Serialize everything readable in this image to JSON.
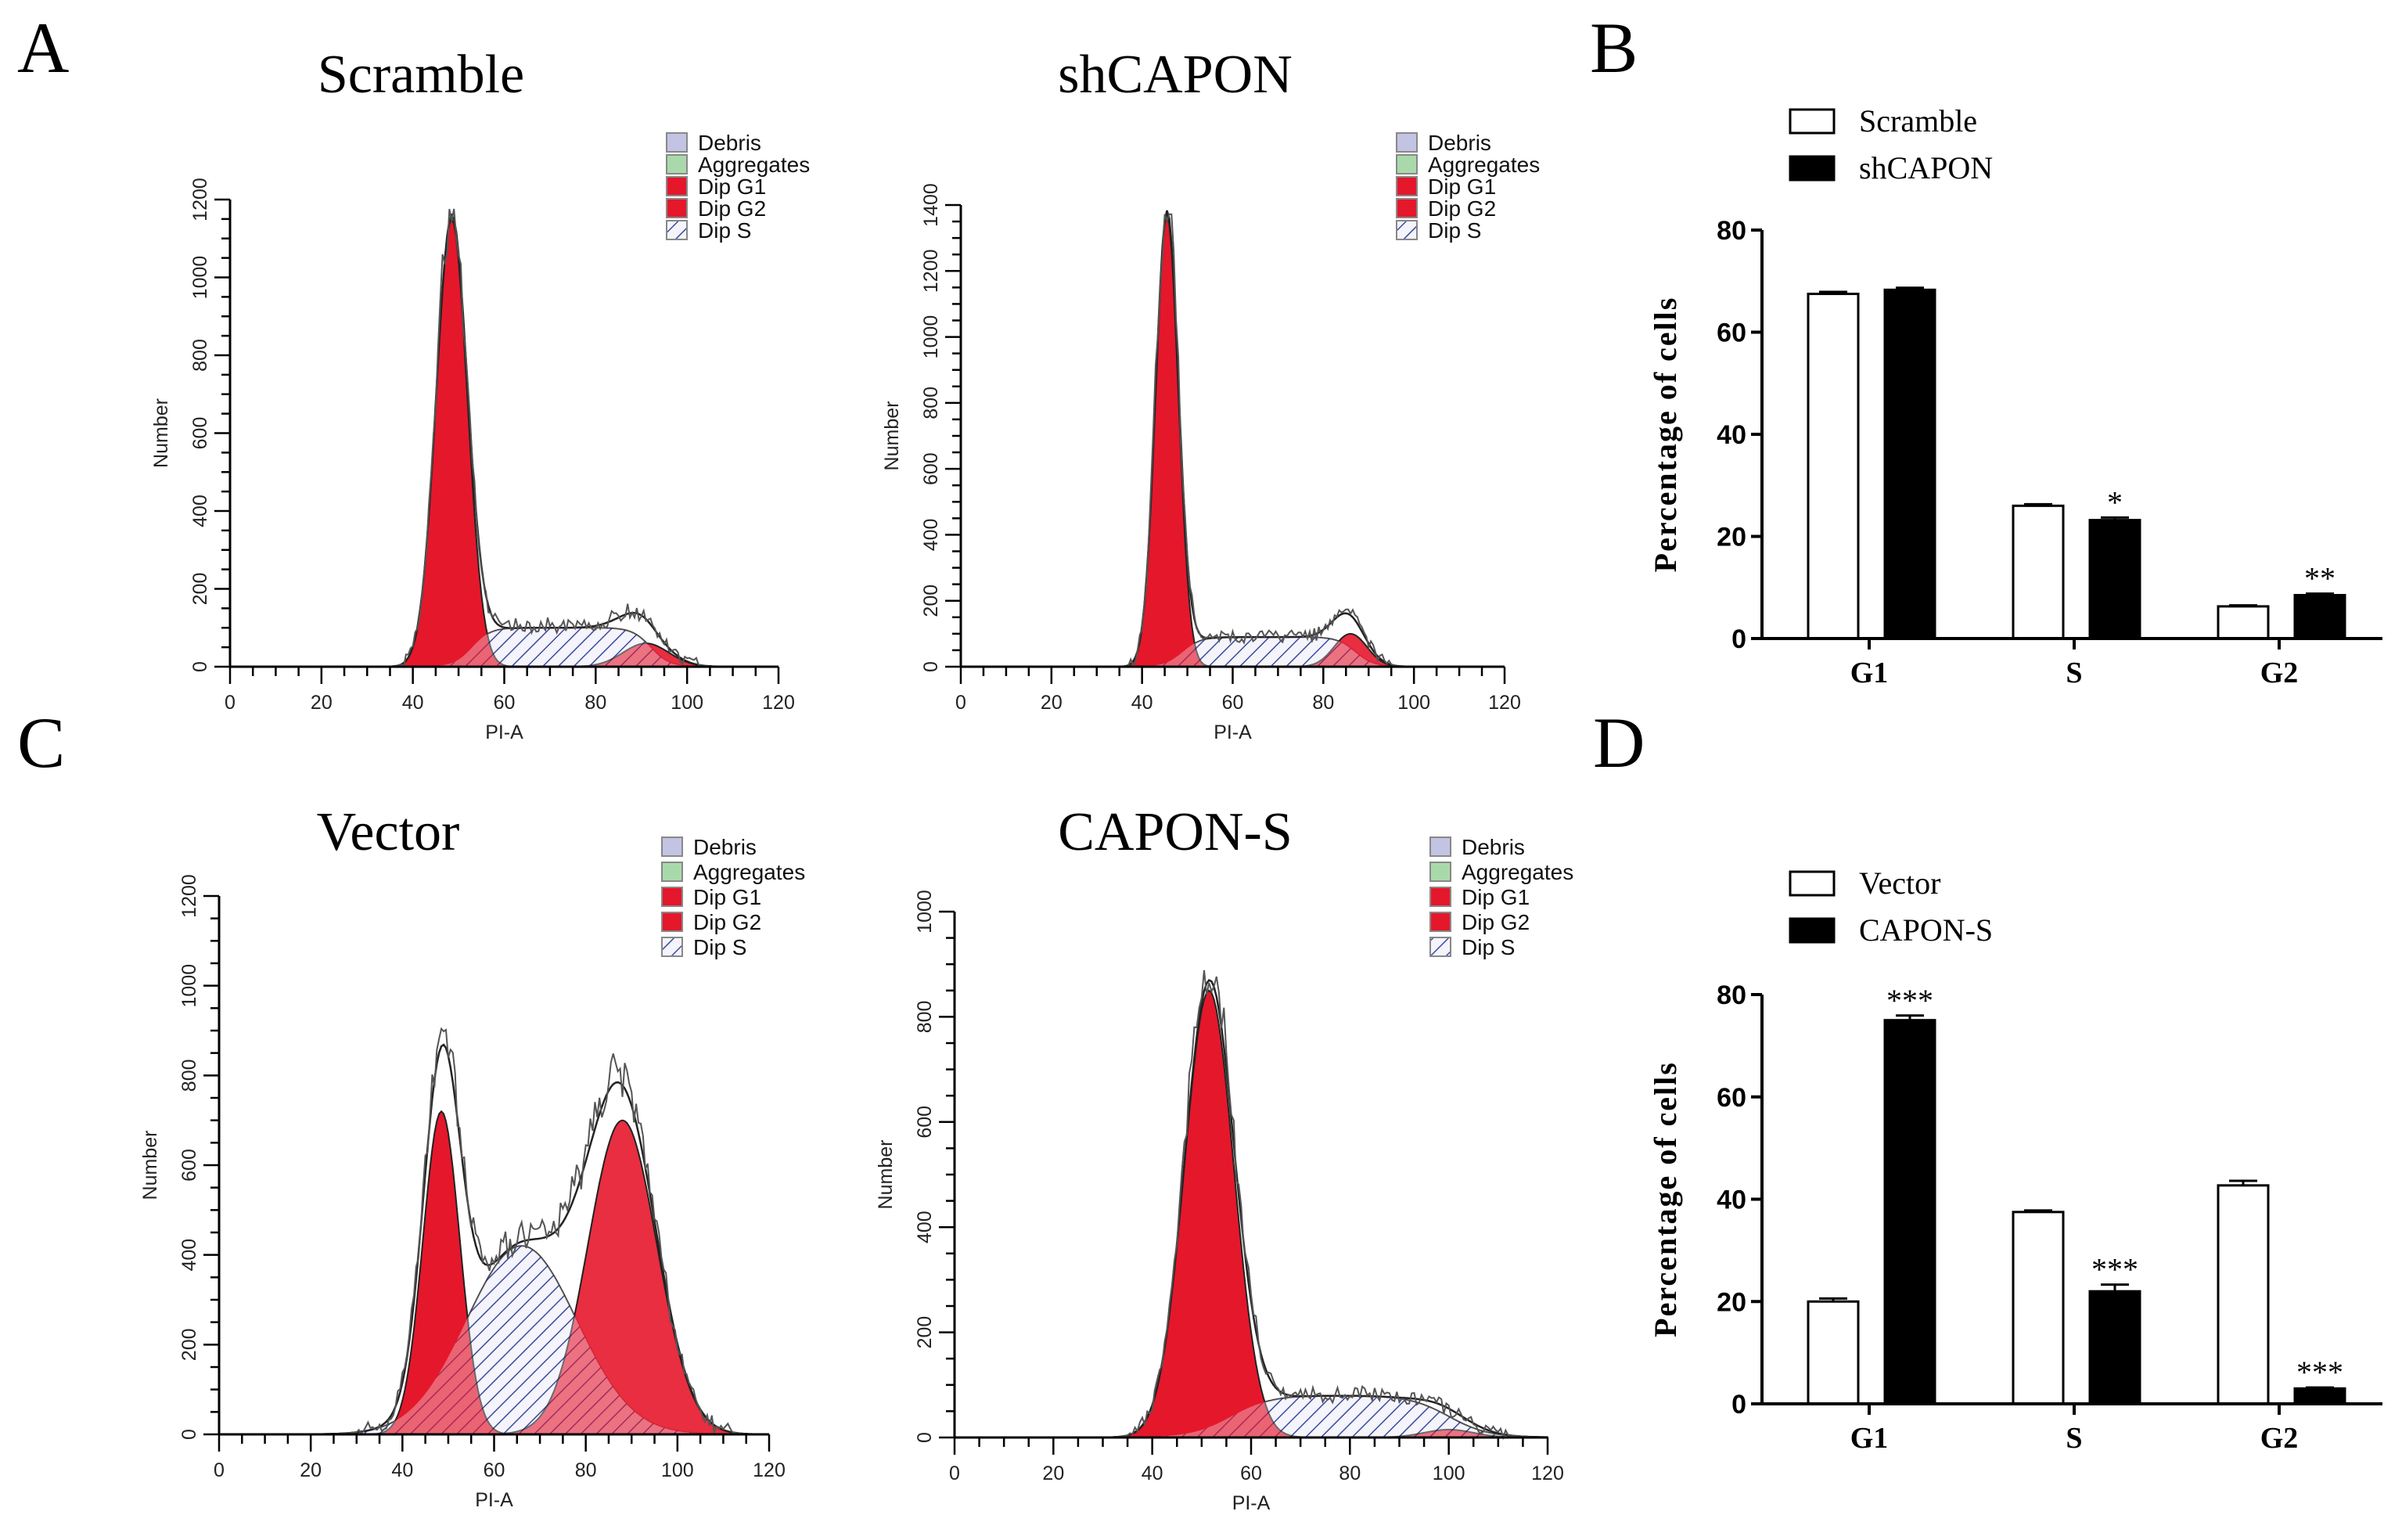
{
  "panel_letters": [
    "A",
    "B",
    "C",
    "D"
  ],
  "colors": {
    "g1": "#e5172b",
    "g2": "#e5172b",
    "debris": "#c3c3e3",
    "aggregates": "#a9d9ab",
    "s_hatch": "#3b4aa0",
    "s_fill": "#f4f4fa"
  },
  "chart_data": [
    {
      "type": "area",
      "title": "Scramble",
      "xlabel": "PI-A",
      "ylabel": "Number",
      "xlim": [
        0,
        120
      ],
      "ylim": [
        0,
        1200
      ],
      "xticks": [
        0,
        20,
        40,
        60,
        80,
        100,
        120
      ],
      "yticks": [
        0,
        200,
        400,
        600,
        800,
        1000,
        1200
      ],
      "legend": [
        "Debris",
        "Aggregates",
        "Dip G1",
        "Dip G2",
        "Dip S"
      ],
      "legend_position": "top-right",
      "components": {
        "g1": {
          "mean": 48.5,
          "sd": 3.4,
          "peak": 1150
        },
        "g2": {
          "mean": 91,
          "sd": 5,
          "peak": 60
        },
        "s": {
          "shape": "plateau",
          "start": 53,
          "end": 92,
          "level": 100,
          "edge": 2
        }
      }
    },
    {
      "type": "area",
      "title": "shCAPON",
      "xlabel": "PI-A",
      "ylabel": "Number",
      "xlim": [
        0,
        120
      ],
      "ylim": [
        0,
        1400
      ],
      "xticks": [
        0,
        20,
        40,
        60,
        80,
        100,
        120
      ],
      "yticks": [
        0,
        200,
        400,
        600,
        800,
        1000,
        1200,
        1400
      ],
      "legend": [
        "Debris",
        "Aggregates",
        "Dip G1",
        "Dip G2",
        "Dip S"
      ],
      "legend_position": "top-right",
      "components": {
        "g1": {
          "mean": 45.5,
          "sd": 2.5,
          "peak": 1370
        },
        "g2": {
          "mean": 86,
          "sd": 3.6,
          "peak": 100
        },
        "s": {
          "shape": "plateau",
          "start": 49,
          "end": 87,
          "level": 90,
          "edge": 2
        }
      }
    },
    {
      "type": "bar",
      "categories": [
        "G1",
        "S",
        "G2"
      ],
      "series": [
        {
          "name": "Scramble",
          "values": [
            67.5,
            26.0,
            6.3
          ],
          "errors": [
            0.4,
            0.3,
            0.2
          ],
          "significance": [
            "",
            "",
            ""
          ]
        },
        {
          "name": "shCAPON",
          "values": [
            68.3,
            23.2,
            8.5
          ],
          "errors": [
            0.4,
            0.5,
            0.3
          ],
          "significance": [
            "",
            "*",
            "**"
          ]
        }
      ],
      "ylabel": "Percentage of cells",
      "ylim": [
        0,
        80
      ],
      "yticks": [
        0,
        20,
        40,
        60,
        80
      ],
      "legend_position": "top-left"
    },
    {
      "type": "area",
      "title": "Vector",
      "xlabel": "PI-A",
      "ylabel": "Number",
      "xlim": [
        0,
        120
      ],
      "ylim": [
        0,
        1200
      ],
      "xticks": [
        0,
        20,
        40,
        60,
        80,
        100,
        120
      ],
      "yticks": [
        0,
        200,
        400,
        600,
        800,
        1000,
        1200
      ],
      "legend": [
        "Debris",
        "Aggregates",
        "Dip G1",
        "Dip G2",
        "Dip S"
      ],
      "legend_position": "top-right",
      "components": {
        "g1": {
          "mean": 48.5,
          "sd": 4,
          "peak": 720
        },
        "g2": {
          "mean": 88,
          "sd": 7.5,
          "peak": 700
        },
        "s": {
          "shape": "gauss",
          "mean": 66,
          "sd": 12,
          "peak": 420
        }
      }
    },
    {
      "type": "area",
      "title": "CAPON-S",
      "xlabel": "PI-A",
      "ylabel": "Number",
      "xlim": [
        0,
        120
      ],
      "ylim": [
        0,
        1000
      ],
      "xticks": [
        0,
        20,
        40,
        60,
        80,
        100,
        120
      ],
      "yticks": [
        0,
        200,
        400,
        600,
        800,
        1000
      ],
      "legend": [
        "Debris",
        "Aggregates",
        "Dip G1",
        "Dip G2",
        "Dip S"
      ],
      "legend_position": "top-right",
      "components": {
        "g1": {
          "mean": 51.5,
          "sd": 5,
          "peak": 850
        },
        "g2": {
          "mean": 100,
          "sd": 5,
          "peak": 15
        },
        "s": {
          "shape": "plateau",
          "start": 56,
          "end": 100,
          "level": 80,
          "edge": 4
        }
      }
    },
    {
      "type": "bar",
      "categories": [
        "G1",
        "S",
        "G2"
      ],
      "series": [
        {
          "name": "Vector",
          "values": [
            20.0,
            37.5,
            42.7
          ],
          "errors": [
            0.6,
            0.3,
            0.9
          ],
          "significance": [
            "",
            "",
            ""
          ]
        },
        {
          "name": "CAPON-S",
          "values": [
            75.0,
            22.0,
            3.0
          ],
          "errors": [
            0.9,
            1.3,
            0.2
          ],
          "significance": [
            "***",
            "***",
            "***"
          ]
        }
      ],
      "ylabel": "Percentage of cells",
      "ylim": [
        0,
        80
      ],
      "yticks": [
        0,
        20,
        40,
        60,
        80
      ],
      "legend_position": "top-left"
    }
  ]
}
